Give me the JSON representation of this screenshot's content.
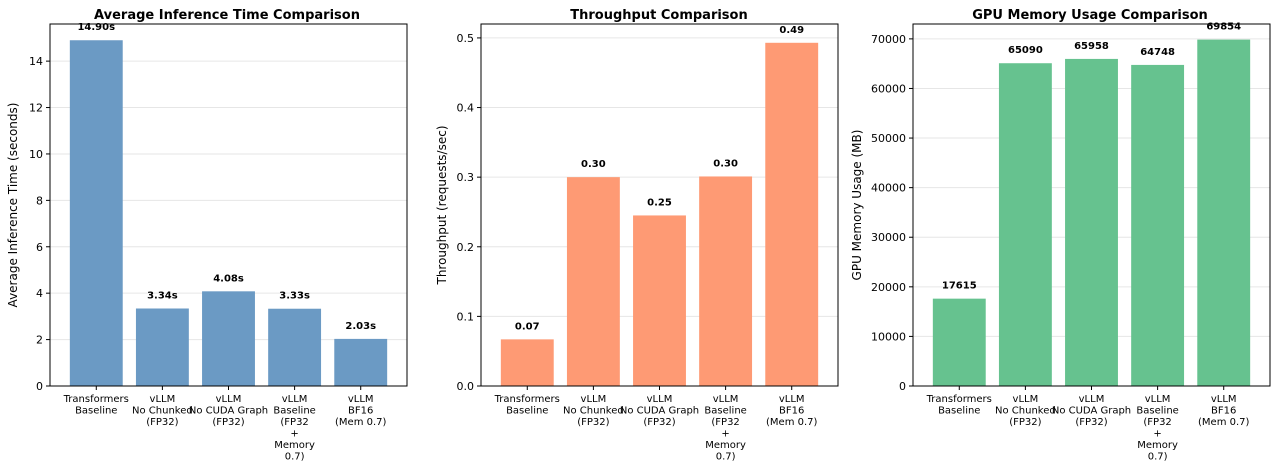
{
  "chart_data": [
    {
      "type": "bar",
      "title": "Average Inference Time Comparison",
      "xlabel": "",
      "ylabel": "Average Inference Time (seconds)",
      "ylim": [
        0,
        15.6
      ],
      "yticks": [
        0,
        2,
        4,
        6,
        8,
        10,
        12,
        14
      ],
      "ytick_labels": [
        "0",
        "2",
        "4",
        "6",
        "8",
        "10",
        "12",
        "14"
      ],
      "categories": [
        [
          "Transformers",
          "Baseline"
        ],
        [
          "vLLM",
          "No Chunked",
          "(FP32)"
        ],
        [
          "vLLM",
          "No CUDA Graph",
          "(FP32)"
        ],
        [
          "vLLM",
          "Baseline",
          "(FP32",
          "+",
          "Memory",
          "0.7)"
        ],
        [
          "vLLM",
          "BF16",
          "(Mem 0.7)"
        ]
      ],
      "values": [
        14.9,
        3.34,
        4.08,
        3.33,
        2.03
      ],
      "value_labels": [
        "14.90s",
        "3.34s",
        "4.08s",
        "3.33s",
        "2.03s"
      ],
      "color": "#6b9ac4",
      "grid": true
    },
    {
      "type": "bar",
      "title": "Throughput Comparison",
      "xlabel": "",
      "ylabel": "Throughput (requests/sec)",
      "ylim": [
        0,
        0.52
      ],
      "yticks": [
        0,
        0.1,
        0.2,
        0.3,
        0.4,
        0.5
      ],
      "ytick_labels": [
        "0.0",
        "0.1",
        "0.2",
        "0.3",
        "0.4",
        "0.5"
      ],
      "categories": [
        [
          "Transformers",
          "Baseline"
        ],
        [
          "vLLM",
          "No Chunked",
          "(FP32)"
        ],
        [
          "vLLM",
          "No CUDA Graph",
          "(FP32)"
        ],
        [
          "vLLM",
          "Baseline",
          "(FP32",
          "+",
          "Memory",
          "0.7)"
        ],
        [
          "vLLM",
          "BF16",
          "(Mem 0.7)"
        ]
      ],
      "values": [
        0.067,
        0.3,
        0.245,
        0.301,
        0.493
      ],
      "value_labels": [
        "0.07",
        "0.30",
        "0.25",
        "0.30",
        "0.49"
      ],
      "color": "#fe9a74",
      "grid": true
    },
    {
      "type": "bar",
      "title": "GPU Memory Usage Comparison",
      "xlabel": "",
      "ylabel": "GPU Memory Usage (MB)",
      "ylim": [
        0,
        73000
      ],
      "yticks": [
        0,
        10000,
        20000,
        30000,
        40000,
        50000,
        60000,
        70000
      ],
      "ytick_labels": [
        "0",
        "10000",
        "20000",
        "30000",
        "40000",
        "50000",
        "60000",
        "70000"
      ],
      "categories": [
        [
          "Transformers",
          "Baseline"
        ],
        [
          "vLLM",
          "No Chunked",
          "(FP32)"
        ],
        [
          "vLLM",
          "No CUDA Graph",
          "(FP32)"
        ],
        [
          "vLLM",
          "Baseline",
          "(FP32",
          "+",
          "Memory",
          "0.7)"
        ],
        [
          "vLLM",
          "BF16",
          "(Mem 0.7)"
        ]
      ],
      "values": [
        17615,
        65090,
        65958,
        64748,
        69854
      ],
      "value_labels": [
        "17615",
        "65090",
        "65958",
        "64748",
        "69854"
      ],
      "color": "#66c28f",
      "grid": true
    }
  ]
}
